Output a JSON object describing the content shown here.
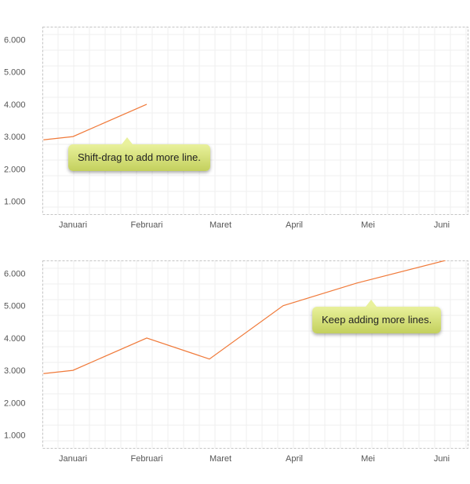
{
  "chart_data": [
    {
      "type": "line",
      "categories": [
        "Januari",
        "Februari",
        "Maret",
        "April",
        "Mei",
        "Juni"
      ],
      "series": [
        {
          "x": [
            -0.4,
            0,
            1
          ],
          "values": [
            2900,
            3000,
            4000
          ]
        }
      ],
      "ylim": [
        600,
        6400
      ],
      "yticks": [
        "1.000",
        "2.000",
        "3.000",
        "4.000",
        "5.000",
        "6.000"
      ],
      "grid": true,
      "color": "#f07a3a",
      "tooltip": "Shift-drag to add more line."
    },
    {
      "type": "line",
      "categories": [
        "Januari",
        "Februari",
        "Maret",
        "April",
        "Mei",
        "Juni"
      ],
      "series": [
        {
          "x": [
            -0.4,
            0,
            1,
            1.85,
            2.85,
            3.85,
            5.05
          ],
          "values": [
            2900,
            3000,
            4000,
            3350,
            5000,
            5700,
            6400
          ]
        }
      ],
      "ylim": [
        600,
        6400
      ],
      "yticks": [
        "1.000",
        "2.000",
        "3.000",
        "4.000",
        "5.000",
        "6.000"
      ],
      "grid": true,
      "color": "#f07a3a",
      "tooltip": "Keep adding more lines."
    }
  ]
}
